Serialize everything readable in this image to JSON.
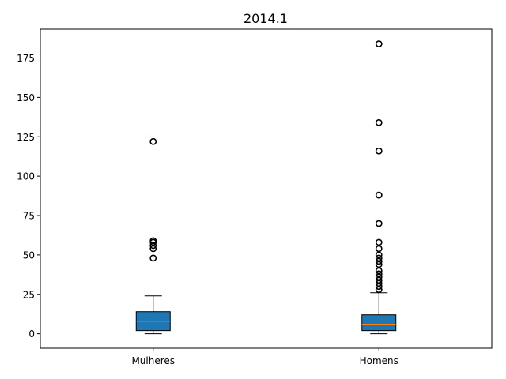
{
  "chart_data": {
    "type": "box",
    "title": "2014.1",
    "xlabel": "",
    "ylabel": "",
    "ylim": [
      -9.2,
      193.3
    ],
    "yticks": [
      0,
      25,
      50,
      75,
      100,
      125,
      150,
      175
    ],
    "grid": false,
    "box_color": "#1f77b4",
    "median_color": "#ff7f0e",
    "series": [
      {
        "category": "Mulheres",
        "whisker_low": 0,
        "q1": 2,
        "median": 8,
        "q3": 14,
        "whisker_high": 24,
        "outliers": [
          48,
          54,
          56,
          58,
          59,
          122
        ]
      },
      {
        "category": "Homens",
        "whisker_low": 0,
        "q1": 2,
        "median": 6,
        "q3": 12,
        "whisker_high": 26,
        "outliers": [
          28,
          30,
          32,
          34,
          36,
          38,
          40,
          44,
          46,
          48,
          50,
          54,
          58,
          70,
          88,
          116,
          134,
          184
        ]
      }
    ]
  }
}
